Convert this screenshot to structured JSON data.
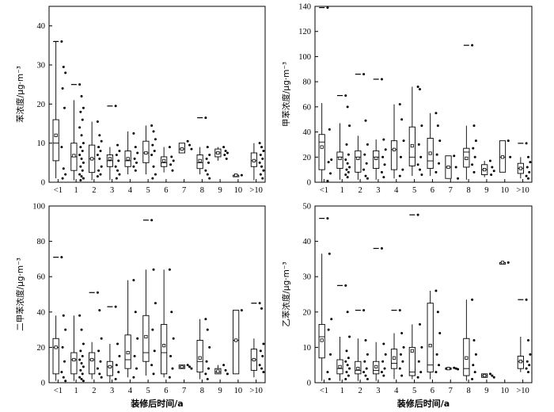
{
  "chart_data": [
    {
      "type": "box",
      "ylabel": "苯浓度/μg·m⁻³",
      "xlabel": "",
      "categories": [
        "<1",
        "1",
        "2",
        "3",
        "4",
        "5",
        "6",
        "7",
        "8",
        "9",
        "10",
        ">10"
      ],
      "ylim": [
        0,
        45
      ],
      "yticks": [
        0,
        10,
        20,
        30,
        40
      ],
      "boxes": [
        {
          "min": 1,
          "q1": 5.5,
          "median": 10,
          "q3": 16,
          "max": 36,
          "mean": 12,
          "outliers": [
            36
          ]
        },
        {
          "min": 0.5,
          "q1": 3,
          "median": 6.5,
          "q3": 10,
          "max": 21,
          "mean": 6.8,
          "outliers": [
            25
          ]
        },
        {
          "min": 0.5,
          "q1": 2.5,
          "median": 6,
          "q3": 9.5,
          "max": 15.5,
          "mean": 6,
          "outliers": []
        },
        {
          "min": 0.5,
          "q1": 4,
          "median": 5.5,
          "q3": 7,
          "max": 9,
          "mean": 6,
          "outliers": [
            19.5
          ]
        },
        {
          "min": 2,
          "q1": 4,
          "median": 5.5,
          "q3": 8,
          "max": 13,
          "mean": 6,
          "outliers": []
        },
        {
          "min": 2,
          "q1": 5,
          "median": 7.5,
          "q3": 10.5,
          "max": 14.5,
          "mean": 7.5,
          "outliers": []
        },
        {
          "min": 2.5,
          "q1": 4,
          "median": 5,
          "q3": 6.5,
          "max": 9,
          "mean": 5.5,
          "outliers": []
        },
        {
          "min": 7.5,
          "q1": 7.5,
          "median": 8.5,
          "q3": 10,
          "max": 10,
          "mean": 8.5,
          "outliers": []
        },
        {
          "min": 2,
          "q1": 3.5,
          "median": 5,
          "q3": 7,
          "max": 9,
          "mean": 5.5,
          "outliers": [
            16.5
          ]
        },
        {
          "min": 5.5,
          "q1": 6.5,
          "median": 7.5,
          "q3": 8.5,
          "max": 9,
          "mean": 7.5,
          "outliers": []
        },
        {
          "min": 1.8,
          "q1": 1.8,
          "median": 1.8,
          "q3": 1.8,
          "max": 1.8,
          "mean": 1.8,
          "outliers": []
        },
        {
          "min": 0.5,
          "q1": 4,
          "median": 5.5,
          "q3": 7.5,
          "max": 10,
          "mean": 5.5,
          "outliers": []
        }
      ],
      "points": [
        [
          36,
          29.5,
          28,
          24,
          19,
          9,
          3.5,
          2,
          1
        ],
        [
          25,
          22,
          19,
          18,
          16,
          14,
          12,
          10,
          9,
          8,
          7,
          6,
          5,
          4,
          3,
          2,
          1.5,
          1,
          0.5
        ],
        [
          15.5,
          12,
          10.5,
          9,
          8,
          7,
          6,
          4,
          3,
          2,
          1.5
        ],
        [
          19.5,
          9.5,
          8,
          7,
          5.5,
          4,
          3,
          2,
          1
        ],
        [
          12.5,
          9,
          7.5,
          6,
          5,
          4,
          3
        ],
        [
          14.5,
          13,
          11,
          9.5,
          8,
          7,
          4,
          2,
          1
        ],
        [
          9,
          6.5,
          5.5,
          4.5,
          3
        ],
        [
          10.5,
          9.5,
          8.5
        ],
        [
          16.5,
          9,
          7,
          6,
          5,
          3,
          2,
          1
        ],
        [
          9,
          8,
          7.5,
          7,
          6
        ],
        [
          1.8
        ],
        [
          10,
          9,
          8,
          7,
          6,
          5,
          4,
          3,
          2,
          1
        ]
      ]
    },
    {
      "type": "box",
      "ylabel": "甲苯浓度/μg·m⁻³",
      "xlabel": "",
      "categories": [
        "<1",
        "1",
        "2",
        "3",
        "4",
        "5",
        "6",
        "7",
        "8",
        "9",
        "10",
        ">10"
      ],
      "ylim": [
        0,
        140
      ],
      "yticks": [
        0,
        20,
        40,
        60,
        80,
        100,
        120,
        140
      ],
      "boxes": [
        {
          "min": 0,
          "q1": 10,
          "median": 32,
          "q3": 38,
          "max": 63,
          "mean": 28,
          "outliers": [
            139
          ]
        },
        {
          "min": 2,
          "q1": 11,
          "median": 20,
          "q3": 24,
          "max": 47,
          "mean": 19,
          "outliers": [
            69
          ]
        },
        {
          "min": 2,
          "q1": 8,
          "median": 20,
          "q3": 25,
          "max": 37,
          "mean": 19,
          "outliers": [
            86
          ]
        },
        {
          "min": 2,
          "q1": 11,
          "median": 20,
          "q3": 25,
          "max": 34,
          "mean": 19,
          "outliers": [
            82
          ]
        },
        {
          "min": 3,
          "q1": 10,
          "median": 26,
          "q3": 33,
          "max": 62,
          "mean": 26,
          "outliers": []
        },
        {
          "min": 5,
          "q1": 13,
          "median": 20,
          "q3": 44,
          "max": 76,
          "mean": 29,
          "outliers": []
        },
        {
          "min": 5,
          "q1": 11,
          "median": 17,
          "q3": 35,
          "max": 55,
          "mean": 23,
          "outliers": []
        },
        {
          "min": 3,
          "q1": 3,
          "median": 12,
          "q3": 21,
          "max": 21,
          "mean": 12,
          "outliers": []
        },
        {
          "min": 2,
          "q1": 12,
          "median": 24,
          "q3": 27,
          "max": 45,
          "mean": 19,
          "outliers": [
            109
          ]
        },
        {
          "min": 4,
          "q1": 6,
          "median": 10,
          "q3": 14,
          "max": 17,
          "mean": 10,
          "outliers": []
        },
        {
          "min": 8,
          "q1": 8,
          "median": 20,
          "q3": 33,
          "max": 33,
          "mean": 20,
          "outliers": []
        },
        {
          "min": 3,
          "q1": 7,
          "median": 11,
          "q3": 15,
          "max": 20,
          "mean": 11,
          "outliers": [
            31
          ]
        }
      ],
      "points": [
        [
          139,
          42,
          18,
          16,
          7,
          1
        ],
        [
          69,
          60,
          45,
          30,
          22,
          18,
          15,
          12,
          10,
          8,
          6,
          4
        ],
        [
          86,
          49,
          30,
          22,
          15,
          10,
          5,
          3
        ],
        [
          82,
          34,
          26,
          20,
          14,
          8,
          4
        ],
        [
          62,
          50,
          33,
          20,
          10,
          5
        ],
        [
          76,
          74,
          45,
          30,
          20,
          14,
          10,
          6
        ],
        [
          55,
          45,
          33,
          22,
          15,
          8
        ],
        [
          21,
          12,
          3
        ],
        [
          109,
          45,
          33,
          27,
          20,
          14,
          8
        ],
        [
          17,
          12,
          9,
          6
        ],
        [
          33,
          20
        ],
        [
          31,
          20,
          16,
          12,
          8,
          5,
          3
        ]
      ]
    },
    {
      "type": "box",
      "ylabel": "二甲苯浓度/μg·m⁻³",
      "xlabel": "装修后时间/a",
      "categories": [
        "<1",
        "1",
        "2",
        "3",
        "4",
        "5",
        "6",
        "7",
        "8",
        "9",
        "10",
        ">10"
      ],
      "ylim": [
        0,
        100
      ],
      "yticks": [
        0,
        20,
        40,
        60,
        80,
        100
      ],
      "boxes": [
        {
          "min": 1,
          "q1": 5,
          "median": 20,
          "q3": 25,
          "max": 38,
          "mean": 20,
          "outliers": [
            71
          ]
        },
        {
          "min": 1,
          "q1": 5,
          "median": 13,
          "q3": 17,
          "max": 38,
          "mean": 13,
          "outliers": []
        },
        {
          "min": 2,
          "q1": 5,
          "median": 13,
          "q3": 17,
          "max": 23,
          "mean": 13,
          "outliers": [
            51
          ]
        },
        {
          "min": 0,
          "q1": 4,
          "median": 9,
          "q3": 12,
          "max": 22,
          "mean": 9,
          "outliers": [
            43
          ]
        },
        {
          "min": 3,
          "q1": 8,
          "median": 13,
          "q3": 27,
          "max": 58,
          "mean": 17,
          "outliers": []
        },
        {
          "min": 4,
          "q1": 12,
          "median": 17,
          "q3": 38,
          "max": 64,
          "mean": 26,
          "outliers": [
            92
          ]
        },
        {
          "min": 3,
          "q1": 5,
          "median": 17,
          "q3": 33,
          "max": 64,
          "mean": 21,
          "outliers": []
        },
        {
          "min": 8,
          "q1": 8,
          "median": 9,
          "q3": 10,
          "max": 10,
          "mean": 9,
          "outliers": []
        },
        {
          "min": 2,
          "q1": 6,
          "median": 12,
          "q3": 24,
          "max": 36,
          "mean": 14,
          "outliers": []
        },
        {
          "min": 5,
          "q1": 5,
          "median": 6,
          "q3": 8,
          "max": 10,
          "mean": 6.5,
          "outliers": []
        },
        {
          "min": 5,
          "q1": 5,
          "median": 24,
          "q3": 41,
          "max": 41,
          "mean": 24,
          "outliers": []
        },
        {
          "min": 3,
          "q1": 7,
          "median": 13,
          "q3": 19,
          "max": 25,
          "mean": 13,
          "outliers": [
            45
          ]
        }
      ],
      "points": [
        [
          71,
          38,
          30,
          20,
          12,
          6,
          3,
          1
        ],
        [
          38,
          30,
          22,
          18,
          15,
          13,
          11,
          9,
          7,
          5,
          3,
          2,
          1
        ],
        [
          51,
          41,
          25,
          18,
          12,
          8,
          5,
          3
        ],
        [
          43,
          22,
          15,
          10,
          6,
          2
        ],
        [
          58,
          40,
          25,
          15,
          8,
          3
        ],
        [
          92,
          64,
          45,
          30,
          18,
          10,
          5
        ],
        [
          64,
          40,
          25,
          15,
          8,
          3
        ],
        [
          10,
          9,
          8
        ],
        [
          36,
          30,
          20,
          12,
          8,
          5,
          2
        ],
        [
          10,
          7,
          5
        ],
        [
          41
        ],
        [
          45,
          42,
          22,
          18,
          15,
          10,
          8,
          6
        ]
      ]
    },
    {
      "type": "box",
      "ylabel": "乙苯浓度/μg·m⁻³",
      "xlabel": "装修后时间/a",
      "categories": [
        "<1",
        "1",
        "2",
        "3",
        "4",
        "5",
        "6",
        "7",
        "8",
        "9",
        "10",
        ">10"
      ],
      "ylim": [
        0,
        50
      ],
      "yticks": [
        0,
        10,
        20,
        30,
        40,
        50
      ],
      "boxes": [
        {
          "min": 0.5,
          "q1": 7,
          "median": 13,
          "q3": 16.5,
          "max": 36.5,
          "mean": 12,
          "outliers": [
            46.5
          ]
        },
        {
          "min": 0.5,
          "q1": 2.5,
          "median": 4,
          "q3": 6.5,
          "max": 13,
          "mean": 4.5,
          "outliers": [
            27.5
          ]
        },
        {
          "min": 0.5,
          "q1": 2.5,
          "median": 3.5,
          "q3": 6,
          "max": 12.5,
          "mean": 4,
          "outliers": [
            20.5
          ]
        },
        {
          "min": 0.5,
          "q1": 2.5,
          "median": 3.5,
          "q3": 6,
          "max": 11.5,
          "mean": 4.5,
          "outliers": [
            38
          ]
        },
        {
          "min": 1,
          "q1": 4,
          "median": 5.5,
          "q3": 9.5,
          "max": 14,
          "mean": 7,
          "outliers": [
            20.5
          ]
        },
        {
          "min": 1,
          "q1": 2,
          "median": 3,
          "q3": 10,
          "max": 16.5,
          "mean": 9,
          "outliers": [
            47.5
          ]
        },
        {
          "min": 1,
          "q1": 3,
          "median": 5,
          "q3": 22.5,
          "max": 26,
          "mean": 10.5,
          "outliers": []
        },
        {
          "min": 3.8,
          "q1": 3.8,
          "median": 4,
          "q3": 4.2,
          "max": 4.2,
          "mean": 4,
          "outliers": []
        },
        {
          "min": 0.5,
          "q1": 2,
          "median": 4,
          "q3": 12.5,
          "max": 23.5,
          "mean": 7,
          "outliers": []
        },
        {
          "min": 1.5,
          "q1": 1.5,
          "median": 2,
          "q3": 2.5,
          "max": 2.5,
          "mean": 2,
          "outliers": []
        },
        {
          "min": 34,
          "q1": 34,
          "median": 34,
          "q3": 34,
          "max": 34,
          "mean": 34,
          "outliers": []
        },
        {
          "min": 3,
          "q1": 4,
          "median": 6,
          "q3": 7.5,
          "max": 13,
          "mean": 6,
          "outliers": [
            23.5
          ]
        }
      ],
      "points": [
        [
          46.5,
          36.5,
          18,
          15,
          8,
          3,
          1
        ],
        [
          27.5,
          20,
          13,
          9,
          7,
          6,
          5,
          4,
          3,
          2,
          1
        ],
        [
          20.5,
          12,
          8,
          6,
          4,
          3,
          2,
          1
        ],
        [
          38,
          11,
          8,
          6,
          4,
          3,
          2
        ],
        [
          20.5,
          14,
          10,
          8,
          6,
          4,
          2
        ],
        [
          47.5,
          16.5,
          10,
          6,
          3,
          1.5
        ],
        [
          26,
          20,
          14,
          8,
          5,
          3
        ],
        [
          4.2,
          4,
          3.8
        ],
        [
          23.5,
          12,
          8,
          5,
          3,
          1
        ],
        [
          2.5,
          2,
          1.5
        ],
        [
          34
        ],
        [
          23.5,
          12,
          8,
          6,
          5,
          4,
          3
        ]
      ]
    }
  ]
}
